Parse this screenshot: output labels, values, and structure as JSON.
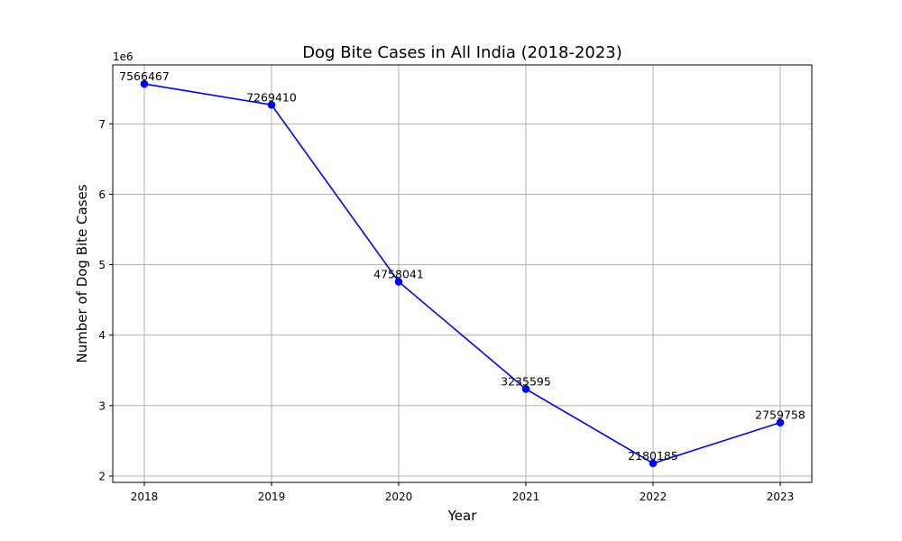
{
  "chart_data": {
    "type": "line",
    "title": "Dog Bite Cases in All India (2018-2023)",
    "xlabel": "Year",
    "ylabel": "Number of Dog Bite Cases",
    "y_offset_label": "1e6",
    "categories": [
      "2018",
      "2019",
      "2020",
      "2021",
      "2022",
      "2023"
    ],
    "series": [
      {
        "values": [
          7566467,
          7269410,
          4758041,
          3235595,
          2180185,
          2759758
        ],
        "data_labels": [
          "7566467",
          "7269410",
          "4758041",
          "3235595",
          "2180185",
          "2759758"
        ]
      }
    ],
    "y_ticks": [
      2000000,
      3000000,
      4000000,
      5000000,
      6000000,
      7000000
    ],
    "y_tick_labels": [
      "2",
      "3",
      "4",
      "5",
      "6",
      "7"
    ],
    "ylim": [
      1910000,
      7836000
    ],
    "grid": true,
    "colors": {
      "line": "#0000ff",
      "marker": "#0000ff",
      "grid": "#b0b0b0"
    }
  }
}
